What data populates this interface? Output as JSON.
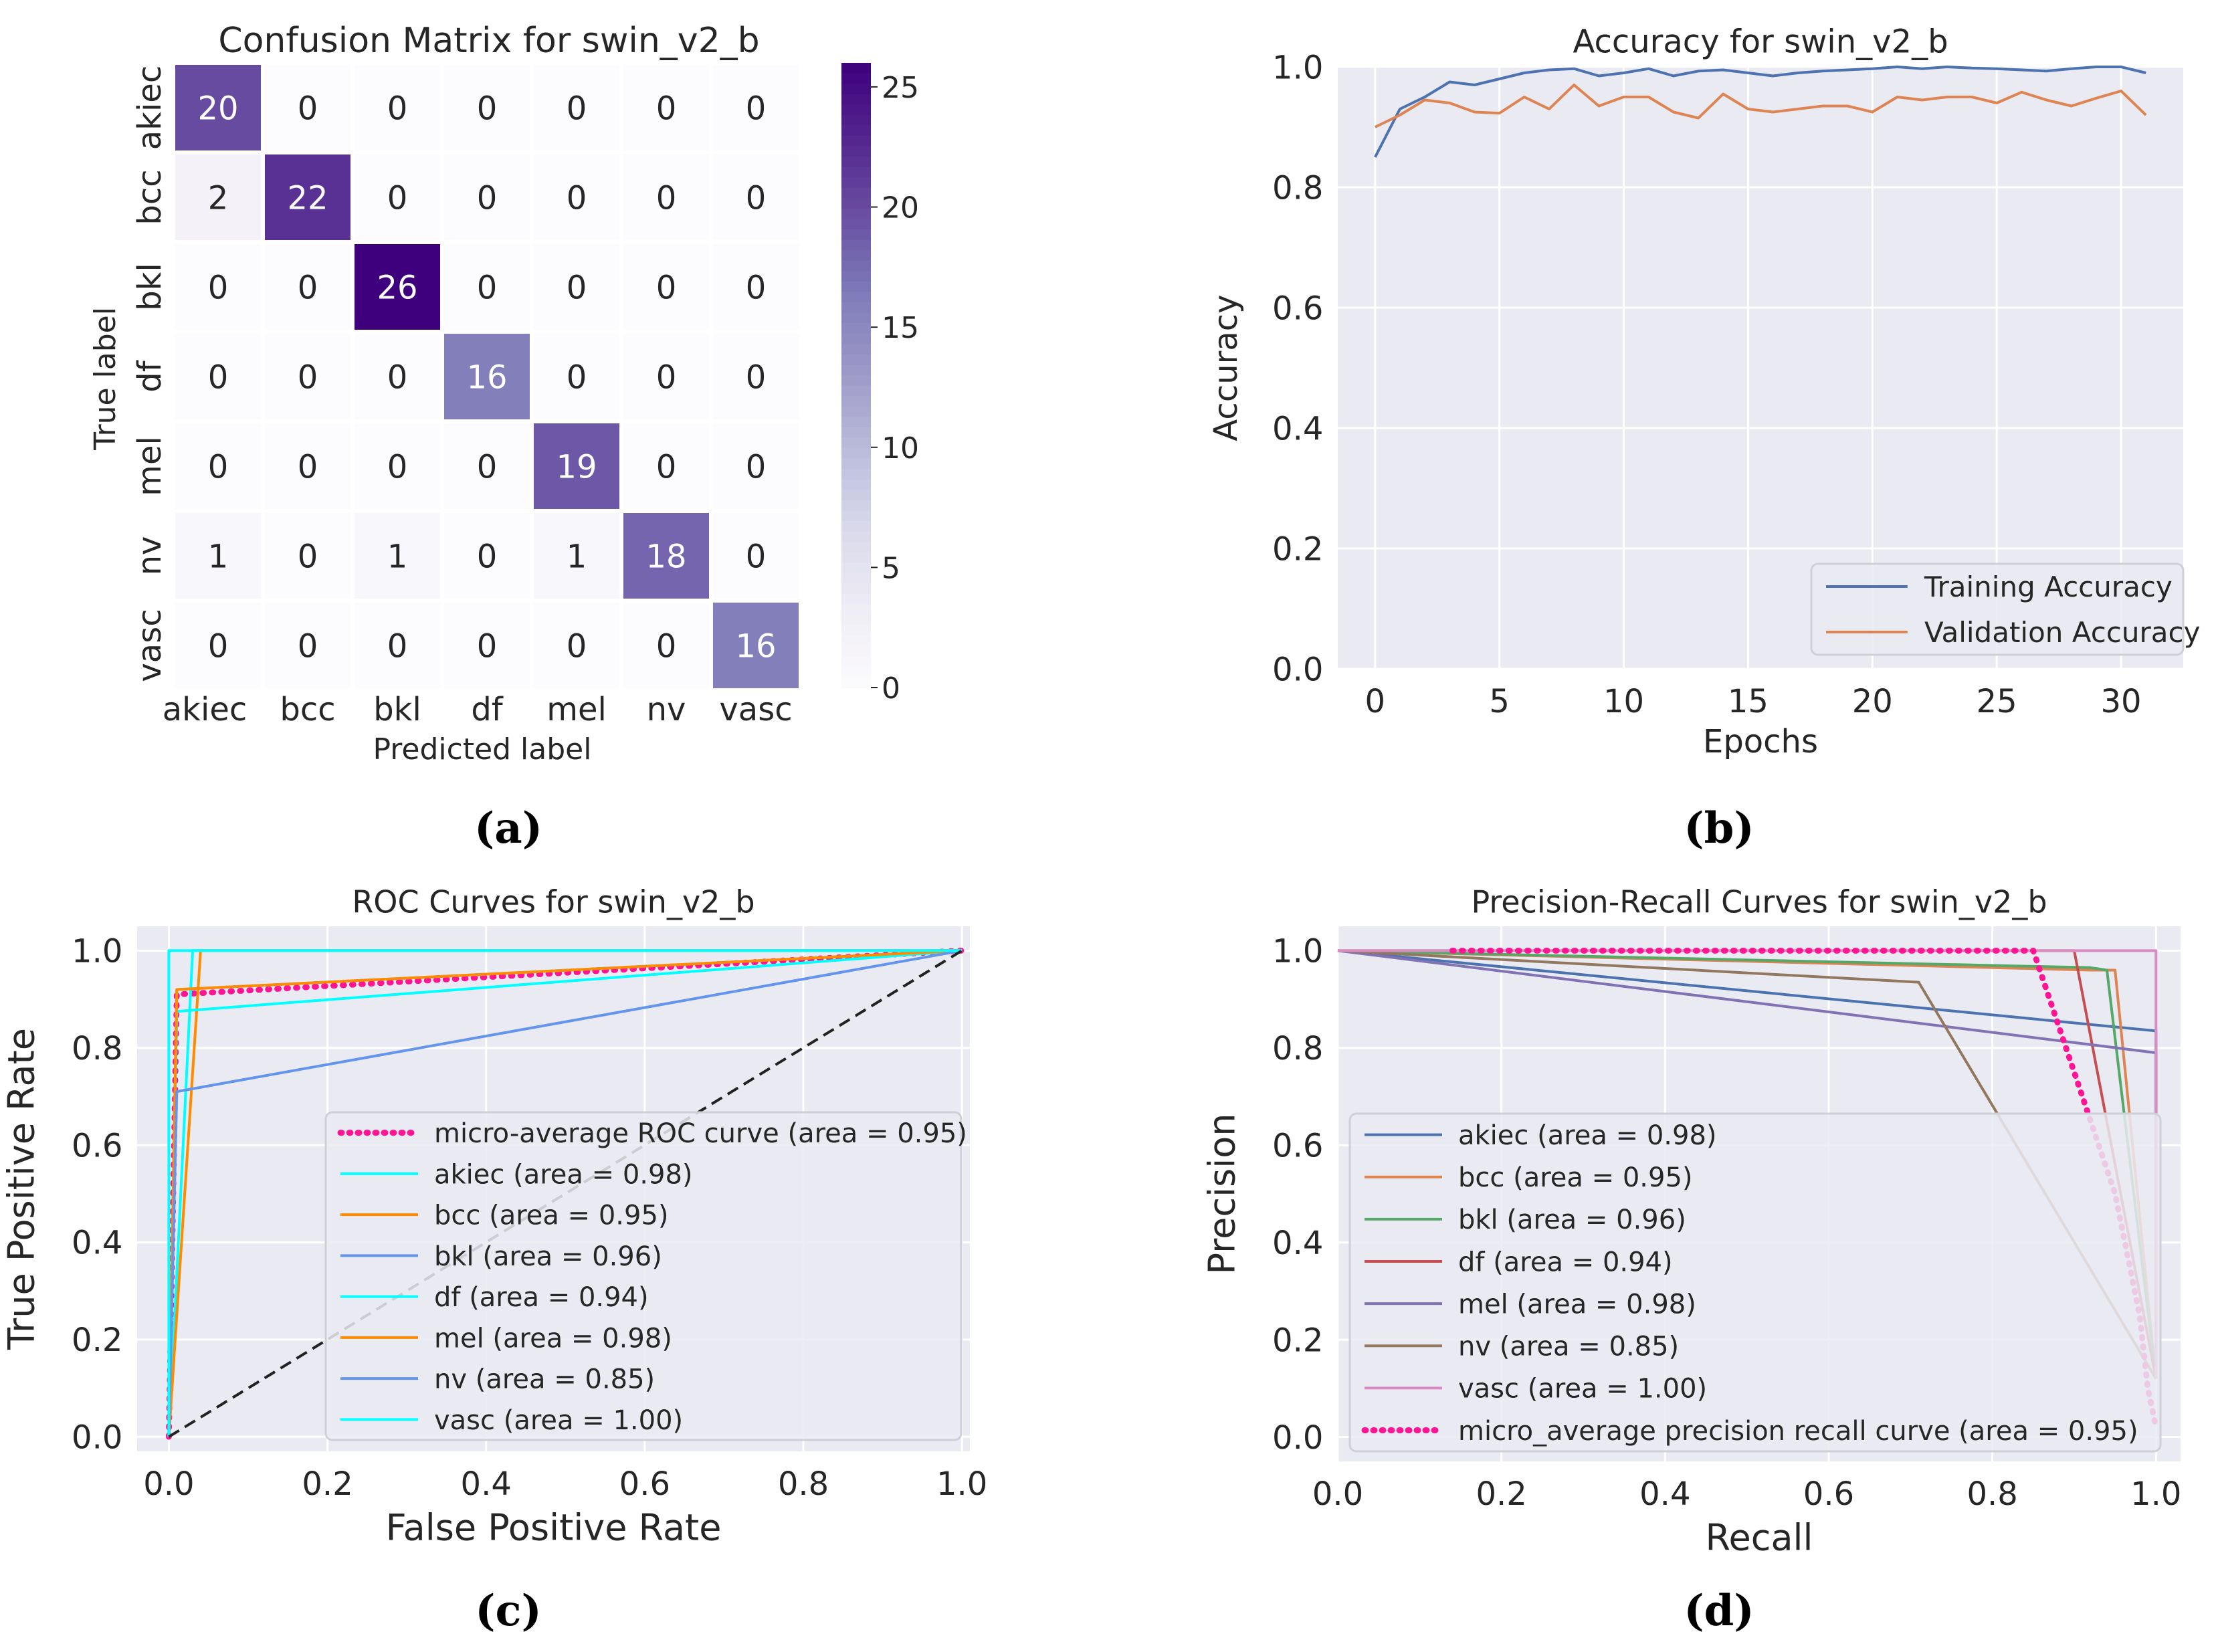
{
  "chart_data": [
    {
      "type": "heatmap",
      "panel_label": "(a)",
      "title": "Confusion Matrix for swin_v2_b",
      "xlabel": "Predicted label",
      "ylabel": "True label",
      "labels": [
        "akiec",
        "bcc",
        "bkl",
        "df",
        "mel",
        "nv",
        "vasc"
      ],
      "matrix": [
        [
          20,
          0,
          0,
          0,
          0,
          0,
          0
        ],
        [
          2,
          22,
          0,
          0,
          0,
          0,
          0
        ],
        [
          0,
          0,
          26,
          0,
          0,
          0,
          0
        ],
        [
          0,
          0,
          0,
          16,
          0,
          0,
          0
        ],
        [
          0,
          0,
          0,
          0,
          19,
          0,
          0
        ],
        [
          1,
          0,
          1,
          0,
          1,
          18,
          0
        ],
        [
          0,
          0,
          0,
          0,
          0,
          0,
          16
        ]
      ],
      "colorbar": {
        "min": 0,
        "max": 26,
        "ticks": [
          "0",
          "5",
          "10",
          "15",
          "20",
          "25"
        ]
      },
      "colormap": [
        "#fcfbfd",
        "#efedf5",
        "#dadaeb",
        "#bcbddc",
        "#9e9ac8",
        "#807dba",
        "#6a51a3",
        "#54278f",
        "#3f007d"
      ]
    },
    {
      "type": "line",
      "panel_label": "(b)",
      "title": "Accuracy for swin_v2_b",
      "xlabel": "Epochs",
      "ylabel": "Accuracy",
      "xlim": [
        -1.5,
        32.5
      ],
      "ylim": [
        0.0,
        1.0
      ],
      "xticks": [
        0,
        5,
        10,
        15,
        20,
        25,
        30
      ],
      "xtick_labels": [
        "0",
        "5",
        "10",
        "15",
        "20",
        "25",
        "30"
      ],
      "yticks": [
        0.0,
        0.2,
        0.4,
        0.6,
        0.8,
        1.0
      ],
      "ytick_labels": [
        "0.0",
        "0.2",
        "0.4",
        "0.6",
        "0.8",
        "1.0"
      ],
      "grid": true,
      "legend_position": "bottom-right",
      "x": [
        0,
        1,
        2,
        3,
        4,
        5,
        6,
        7,
        8,
        9,
        10,
        11,
        12,
        13,
        14,
        15,
        16,
        17,
        18,
        19,
        20,
        21,
        22,
        23,
        24,
        25,
        26,
        27,
        28,
        29,
        30,
        31
      ],
      "series": [
        {
          "name": "Training Accuracy",
          "color": "#4c72b0",
          "values": [
            0.85,
            0.93,
            0.95,
            0.975,
            0.97,
            0.98,
            0.99,
            0.995,
            0.997,
            0.985,
            0.99,
            0.997,
            0.985,
            0.993,
            0.995,
            0.99,
            0.985,
            0.99,
            0.993,
            0.995,
            0.997,
            1.0,
            0.997,
            1.0,
            0.998,
            0.997,
            0.995,
            0.993,
            0.997,
            1.0,
            1.0,
            0.99
          ]
        },
        {
          "name": "Validation Accuracy",
          "color": "#dd8452",
          "values": [
            0.9,
            0.92,
            0.945,
            0.94,
            0.925,
            0.923,
            0.95,
            0.93,
            0.97,
            0.935,
            0.95,
            0.95,
            0.925,
            0.915,
            0.955,
            0.93,
            0.925,
            0.93,
            0.935,
            0.935,
            0.925,
            0.95,
            0.945,
            0.95,
            0.95,
            0.94,
            0.958,
            0.945,
            0.935,
            0.948,
            0.96,
            0.92
          ]
        }
      ]
    },
    {
      "type": "line",
      "panel_label": "(c)",
      "title": "ROC Curves for swin_v2_b",
      "xlabel": "False Positive Rate",
      "ylabel": "True Positive Rate",
      "xlim": [
        -0.04,
        1.01
      ],
      "ylim": [
        -0.03,
        1.05
      ],
      "xticks": [
        0.0,
        0.2,
        0.4,
        0.6,
        0.8,
        1.0
      ],
      "xtick_labels": [
        "0.0",
        "0.2",
        "0.4",
        "0.6",
        "0.8",
        "1.0"
      ],
      "yticks": [
        0.0,
        0.2,
        0.4,
        0.6,
        0.8,
        1.0
      ],
      "ytick_labels": [
        "0.0",
        "0.2",
        "0.4",
        "0.6",
        "0.8",
        "1.0"
      ],
      "grid": true,
      "legend_position": "center-right",
      "series": [
        {
          "name": "micro-average ROC curve (area = 0.95)",
          "color": "#ff1493",
          "style": "dotted",
          "points": [
            [
              0,
              0
            ],
            [
              0.01,
              0.91
            ],
            [
              1,
              1
            ]
          ]
        },
        {
          "name": "akiec (area = 0.98)",
          "color": "#00ffff",
          "style": "solid",
          "points": [
            [
              0,
              0
            ],
            [
              0.03,
              1.0
            ],
            [
              1,
              1
            ]
          ]
        },
        {
          "name": "bcc (area = 0.95)",
          "color": "#ff8c00",
          "style": "solid",
          "points": [
            [
              0,
              0
            ],
            [
              0.04,
              1.0
            ],
            [
              1,
              1
            ]
          ]
        },
        {
          "name": "bkl (area = 0.96)",
          "color": "#6495ed",
          "style": "solid",
          "points": [
            [
              0,
              0
            ],
            [
              0.01,
              0.92
            ],
            [
              1,
              1
            ]
          ]
        },
        {
          "name": "df (area = 0.94)",
          "color": "#00ffff",
          "style": "solid",
          "points": [
            [
              0,
              0
            ],
            [
              0.01,
              0.875
            ],
            [
              1,
              1
            ]
          ]
        },
        {
          "name": "mel (area = 0.98)",
          "color": "#ff8c00",
          "style": "solid",
          "points": [
            [
              0,
              0
            ],
            [
              0.01,
              0.92
            ],
            [
              1,
              1
            ]
          ]
        },
        {
          "name": "nv (area = 0.85)",
          "color": "#6495ed",
          "style": "solid",
          "points": [
            [
              0,
              0
            ],
            [
              0.01,
              0.71
            ],
            [
              1,
              1
            ]
          ]
        },
        {
          "name": "vasc (area = 1.00)",
          "color": "#00ffff",
          "style": "solid",
          "points": [
            [
              0,
              0
            ],
            [
              0,
              1.0
            ],
            [
              1,
              1
            ]
          ]
        },
        {
          "name": "",
          "color": "#222222",
          "style": "dashed",
          "points": [
            [
              0,
              0
            ],
            [
              1,
              1
            ]
          ]
        }
      ]
    },
    {
      "type": "line",
      "panel_label": "(d)",
      "title": "Precision-Recall Curves for swin_v2_b",
      "xlabel": "Recall",
      "ylabel": "Precision",
      "xlim": [
        0.0,
        1.03
      ],
      "ylim": [
        -0.05,
        1.05
      ],
      "xticks": [
        0.0,
        0.2,
        0.4,
        0.6,
        0.8,
        1.0
      ],
      "xtick_labels": [
        "0.0",
        "0.2",
        "0.4",
        "0.6",
        "0.8",
        "1.0"
      ],
      "yticks": [
        0.0,
        0.2,
        0.4,
        0.6,
        0.8,
        1.0
      ],
      "ytick_labels": [
        "0.0",
        "0.2",
        "0.4",
        "0.6",
        "0.8",
        "1.0"
      ],
      "grid": true,
      "legend_position": "lower-left",
      "series": [
        {
          "name": "akiec (area = 0.98)",
          "color": "#4c72b0",
          "style": "solid",
          "points": [
            [
              0,
              1
            ],
            [
              1.0,
              0.835
            ],
            [
              1.0,
              0.12
            ]
          ]
        },
        {
          "name": "bcc (area = 0.95)",
          "color": "#dd8452",
          "style": "solid",
          "points": [
            [
              0,
              1
            ],
            [
              0.92,
              0.96
            ],
            [
              0.95,
              0.96
            ],
            [
              1.0,
              0.12
            ]
          ]
        },
        {
          "name": "bkl (area = 0.96)",
          "color": "#55a868",
          "style": "solid",
          "points": [
            [
              0,
              1
            ],
            [
              0.92,
              0.965
            ],
            [
              0.94,
              0.96
            ],
            [
              1.0,
              0.12
            ]
          ]
        },
        {
          "name": "df (area = 0.94)",
          "color": "#c44e52",
          "style": "solid",
          "points": [
            [
              0,
              1
            ],
            [
              0.88,
              1.0
            ],
            [
              0.9,
              1.0
            ],
            [
              1.0,
              0.12
            ]
          ]
        },
        {
          "name": "mel (area = 0.98)",
          "color": "#8172b3",
          "style": "solid",
          "points": [
            [
              0,
              1
            ],
            [
              1.0,
              0.79
            ],
            [
              1.0,
              0.12
            ]
          ]
        },
        {
          "name": "nv (area = 0.85)",
          "color": "#937860",
          "style": "solid",
          "points": [
            [
              0,
              1
            ],
            [
              0.71,
              0.935
            ],
            [
              1.0,
              0.12
            ]
          ]
        },
        {
          "name": "vasc (area = 1.00)",
          "color": "#da8bc3",
          "style": "solid",
          "points": [
            [
              0,
              1
            ],
            [
              1.0,
              1.0
            ],
            [
              1.0,
              0.12
            ]
          ]
        },
        {
          "name": "micro_average precision recall curve (area = 0.95)",
          "color": "#ff1493",
          "style": "dotted",
          "points": [
            [
              0.14,
              1.0
            ],
            [
              0.85,
              1.0
            ],
            [
              0.87,
              0.9
            ],
            [
              0.9,
              0.75
            ],
            [
              0.95,
              0.5
            ],
            [
              0.98,
              0.25
            ],
            [
              0.99,
              0.1
            ],
            [
              1.0,
              0.02
            ]
          ]
        }
      ]
    }
  ]
}
